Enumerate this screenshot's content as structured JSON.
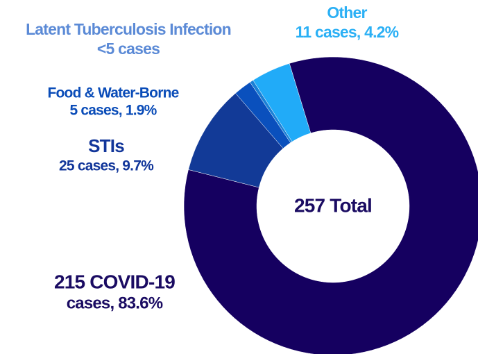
{
  "chart_data": {
    "type": "donut",
    "categories": [
      "215 COVID-19",
      "STIs",
      "Food & Water-Borne",
      "Latent Tuberculosis Infection",
      "Other"
    ],
    "values": [
      215,
      25,
      5,
      1,
      11
    ],
    "value_labels": [
      "cases, 83.6%",
      "25 cases, 9.7%",
      "5 cases, 1.9%",
      "<5 cases",
      "11 cases, 4.2%"
    ],
    "colors": [
      "#150060",
      "#123a97",
      "#0a50bd",
      "#1a80d6",
      "#21abf8"
    ],
    "label_colors": [
      "#1a0b62",
      "#12369a",
      "#0a4cb8",
      "#5b8ad6",
      "#2bb0f5"
    ],
    "center_label": "257 Total"
  }
}
